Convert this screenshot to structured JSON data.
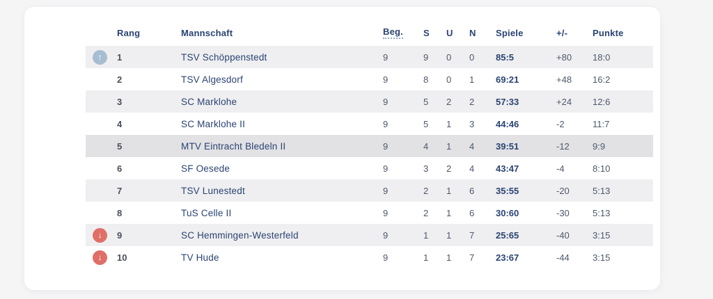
{
  "colors": {
    "page_background": "#f5f5f6",
    "card_background": "#ffffff",
    "header_text": "#2a4372",
    "team_text": "#2a4372",
    "value_text": "#4d576c",
    "stripe_row": "#efeff1",
    "highlight_row": "#e2e2e5",
    "up_icon_bg": "#a7bdd1",
    "down_icon_bg": "#df6f67",
    "icon_glyph": "#ffffff"
  },
  "icons": {
    "up": "↑",
    "down": "↓"
  },
  "table": {
    "headers": {
      "rank": "Rang",
      "team": "Mannschaft",
      "beg": "Beg.",
      "s": "S",
      "u": "U",
      "n": "N",
      "spiele": "Spiele",
      "diff": "+/-",
      "punkte": "Punkte"
    },
    "rows": [
      {
        "rank": "1",
        "team": "TSV Schöppenstedt",
        "beg": "9",
        "s": "9",
        "u": "0",
        "n": "0",
        "spiele": "85:5",
        "diff": "+80",
        "punkte": "18:0",
        "movement": "up",
        "highlighted": false
      },
      {
        "rank": "2",
        "team": "TSV Algesdorf",
        "beg": "9",
        "s": "8",
        "u": "0",
        "n": "1",
        "spiele": "69:21",
        "diff": "+48",
        "punkte": "16:2",
        "movement": "none",
        "highlighted": false
      },
      {
        "rank": "3",
        "team": "SC Marklohe",
        "beg": "9",
        "s": "5",
        "u": "2",
        "n": "2",
        "spiele": "57:33",
        "diff": "+24",
        "punkte": "12:6",
        "movement": "none",
        "highlighted": false
      },
      {
        "rank": "4",
        "team": "SC Marklohe II",
        "beg": "9",
        "s": "5",
        "u": "1",
        "n": "3",
        "spiele": "44:46",
        "diff": "-2",
        "punkte": "11:7",
        "movement": "none",
        "highlighted": false
      },
      {
        "rank": "5",
        "team": "MTV Eintracht Bledeln II",
        "beg": "9",
        "s": "4",
        "u": "1",
        "n": "4",
        "spiele": "39:51",
        "diff": "-12",
        "punkte": "9:9",
        "movement": "none",
        "highlighted": true
      },
      {
        "rank": "6",
        "team": "SF Oesede",
        "beg": "9",
        "s": "3",
        "u": "2",
        "n": "4",
        "spiele": "43:47",
        "diff": "-4",
        "punkte": "8:10",
        "movement": "none",
        "highlighted": false
      },
      {
        "rank": "7",
        "team": "TSV Lunestedt",
        "beg": "9",
        "s": "2",
        "u": "1",
        "n": "6",
        "spiele": "35:55",
        "diff": "-20",
        "punkte": "5:13",
        "movement": "none",
        "highlighted": false
      },
      {
        "rank": "8",
        "team": "TuS Celle II",
        "beg": "9",
        "s": "2",
        "u": "1",
        "n": "6",
        "spiele": "30:60",
        "diff": "-30",
        "punkte": "5:13",
        "movement": "none",
        "highlighted": false
      },
      {
        "rank": "9",
        "team": "SC Hemmingen-Westerfeld",
        "beg": "9",
        "s": "1",
        "u": "1",
        "n": "7",
        "spiele": "25:65",
        "diff": "-40",
        "punkte": "3:15",
        "movement": "down",
        "highlighted": false
      },
      {
        "rank": "10",
        "team": "TV Hude",
        "beg": "9",
        "s": "1",
        "u": "1",
        "n": "7",
        "spiele": "23:67",
        "diff": "-44",
        "punkte": "3:15",
        "movement": "down",
        "highlighted": false
      }
    ]
  }
}
